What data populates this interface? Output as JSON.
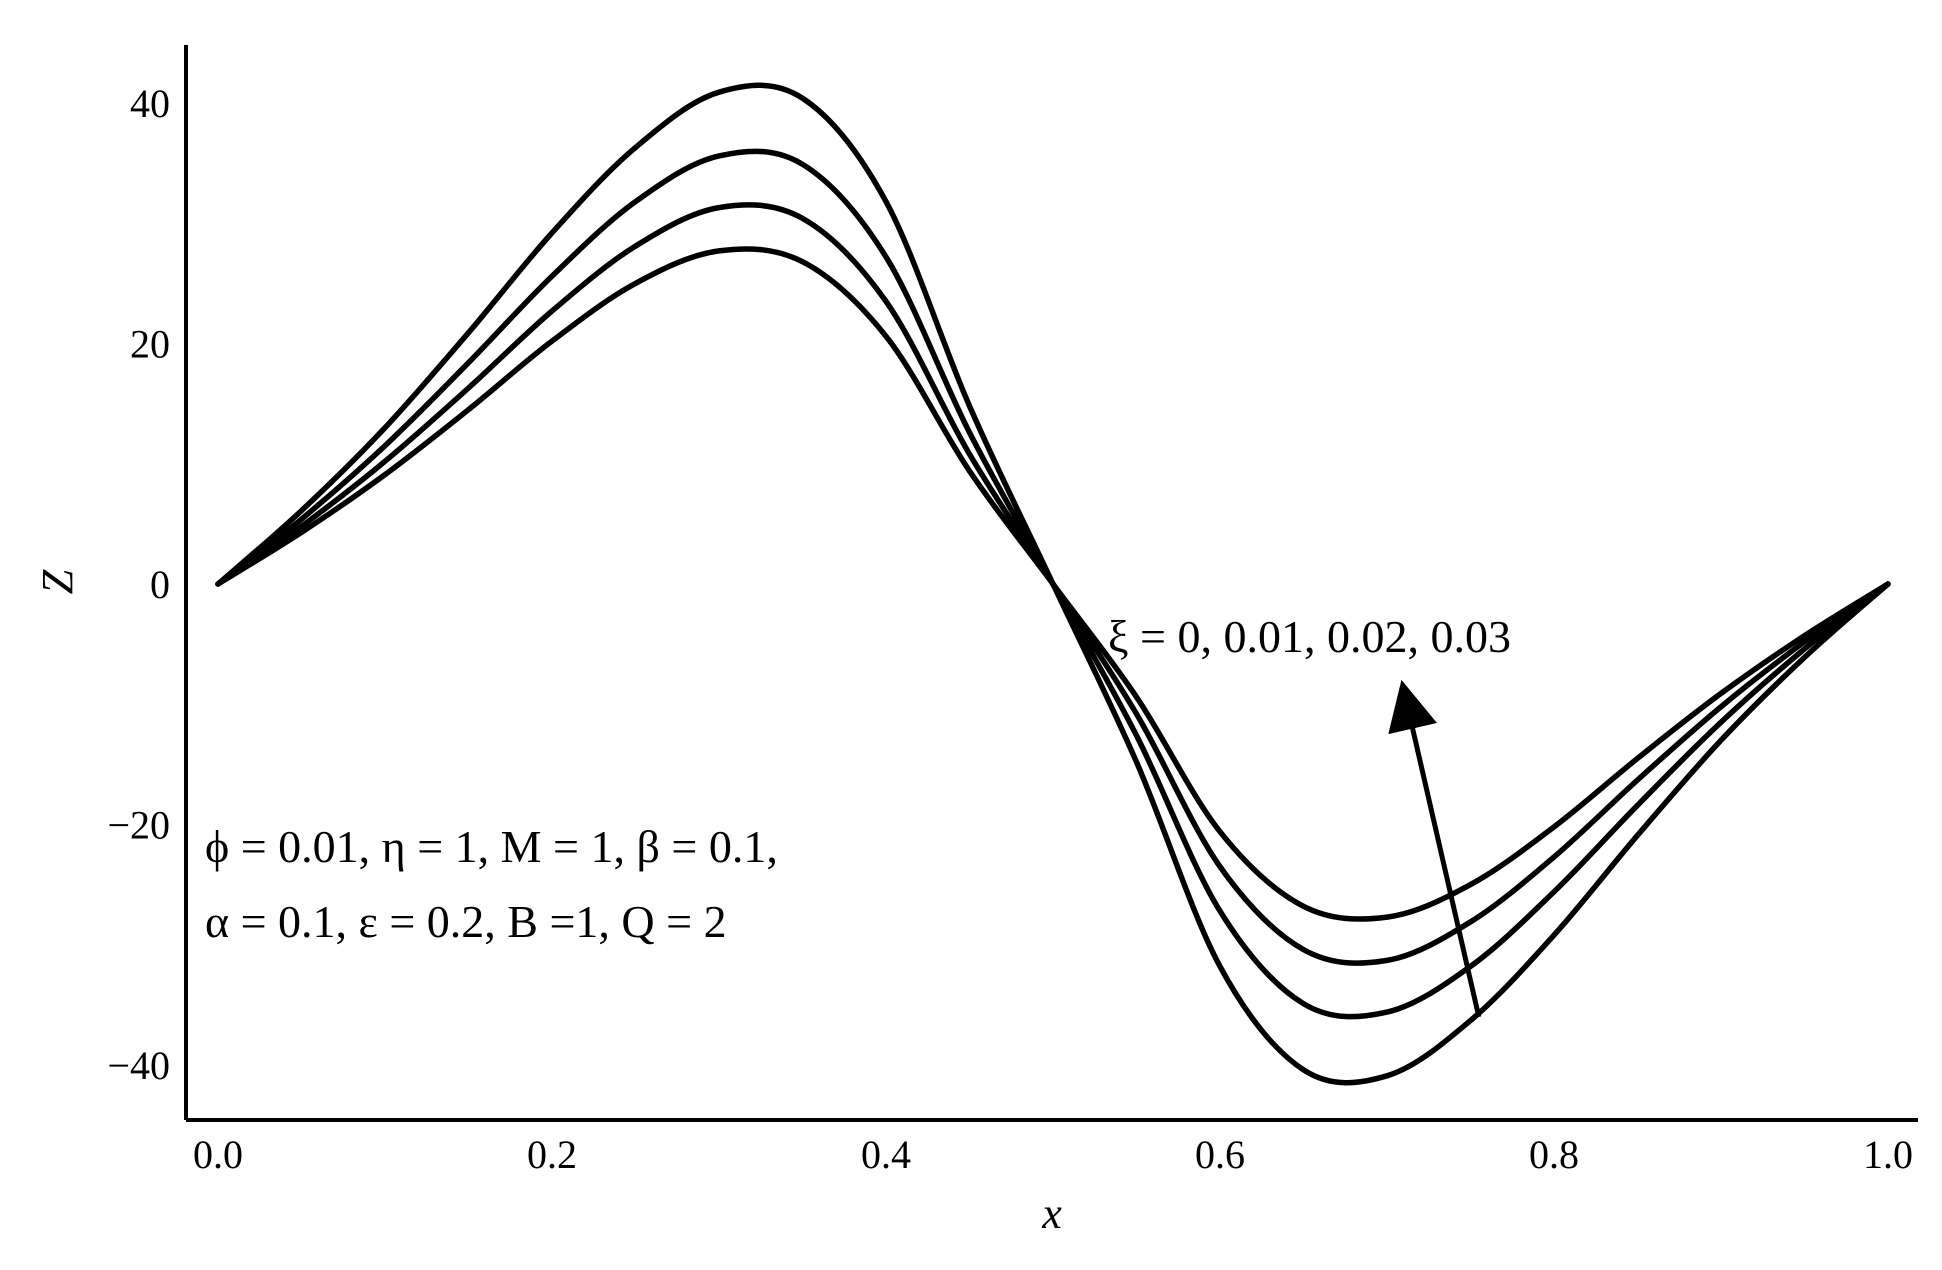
{
  "chart_data": {
    "type": "line",
    "title": "",
    "xlabel": "x",
    "ylabel": "Z",
    "xlim": [
      0,
      1.0
    ],
    "ylim": [
      -45,
      45
    ],
    "xticks": [
      "0.0",
      "0.2",
      "0.4",
      "0.6",
      "0.8",
      "1.0"
    ],
    "yticks": [
      "40",
      "20",
      "0",
      "−20",
      "−40"
    ],
    "x": [
      0.0,
      0.05,
      0.1,
      0.15,
      0.2,
      0.25,
      0.3,
      0.35,
      0.4,
      0.45,
      0.5,
      0.55,
      0.6,
      0.65,
      0.7,
      0.75,
      0.8,
      0.85,
      0.9,
      0.95,
      1.0
    ],
    "series": [
      {
        "values": [
          0,
          4.3,
          9.1,
          14.5,
          20.2,
          25.0,
          27.7,
          26.8,
          20.6,
          9.4,
          0,
          -9.4,
          -20.6,
          -26.8,
          -27.7,
          -25.0,
          -20.2,
          -14.5,
          -9.1,
          -4.3,
          0
        ]
      },
      {
        "values": [
          0,
          4.8,
          10.2,
          16.3,
          22.7,
          28.1,
          31.3,
          30.4,
          23.5,
          10.8,
          0,
          -10.8,
          -23.5,
          -30.4,
          -31.3,
          -28.1,
          -22.7,
          -16.3,
          -10.2,
          -4.8,
          0
        ]
      },
      {
        "values": [
          0,
          5.4,
          11.5,
          18.4,
          25.6,
          31.8,
          35.6,
          34.9,
          27.2,
          12.6,
          0,
          -12.6,
          -27.2,
          -34.9,
          -35.6,
          -31.8,
          -25.6,
          -18.4,
          -11.5,
          -5.4,
          0
        ]
      },
      {
        "values": [
          0,
          6.1,
          13.0,
          20.9,
          29.2,
          36.3,
          40.9,
          40.4,
          31.8,
          14.8,
          0,
          -14.8,
          -31.8,
          -40.4,
          -40.9,
          -36.3,
          -29.2,
          -20.9,
          -13.0,
          -6.1,
          0
        ]
      }
    ],
    "grid": false,
    "annotations": {
      "arrow_label": "ξ = 0, 0.01, 0.02, 0.03",
      "params_line1": "ϕ  = 0.01, η = 1, M = 1, β = 0.1,",
      "params_line2": "α = 0.1, ε = 0.2, B =1, Q = 2"
    },
    "arrow_data": {
      "from": [
        0.755,
        -36
      ],
      "to": [
        0.712,
        -10
      ]
    }
  }
}
